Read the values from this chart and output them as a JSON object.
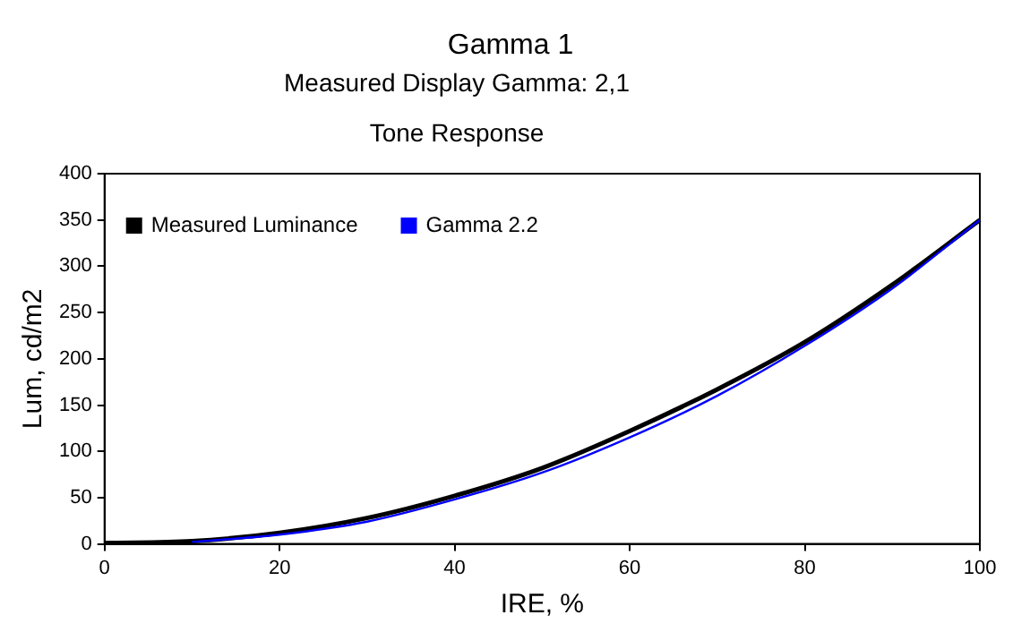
{
  "chart_data": {
    "type": "line",
    "title": "Gamma 1",
    "subtitle": "Measured Display Gamma: 2,1",
    "annotations": [
      "Tone Response"
    ],
    "xlabel": "IRE, %",
    "ylabel": "Lum, cd/m2",
    "x": [
      0,
      10,
      20,
      30,
      40,
      50,
      60,
      70,
      80,
      90,
      100
    ],
    "series": [
      {
        "name": "Measured Luminance",
        "color": "#000000",
        "values": [
          1,
          3,
          12,
          28,
          52,
          82,
          122,
          167,
          218,
          280,
          350
        ]
      },
      {
        "name": "Gamma 2.2",
        "color": "#0000ff",
        "values": [
          null,
          2,
          10,
          24,
          48,
          77,
          115,
          160,
          214,
          276,
          350
        ]
      }
    ],
    "xlim": [
      0,
      100
    ],
    "xticks": [
      0,
      20,
      40,
      60,
      80,
      100
    ],
    "ylim": [
      0,
      400
    ],
    "yticks": [
      0,
      50,
      100,
      150,
      200,
      250,
      300,
      350,
      400
    ],
    "grid": false,
    "legend": "top left",
    "marker": "none",
    "line_style": "solid"
  }
}
